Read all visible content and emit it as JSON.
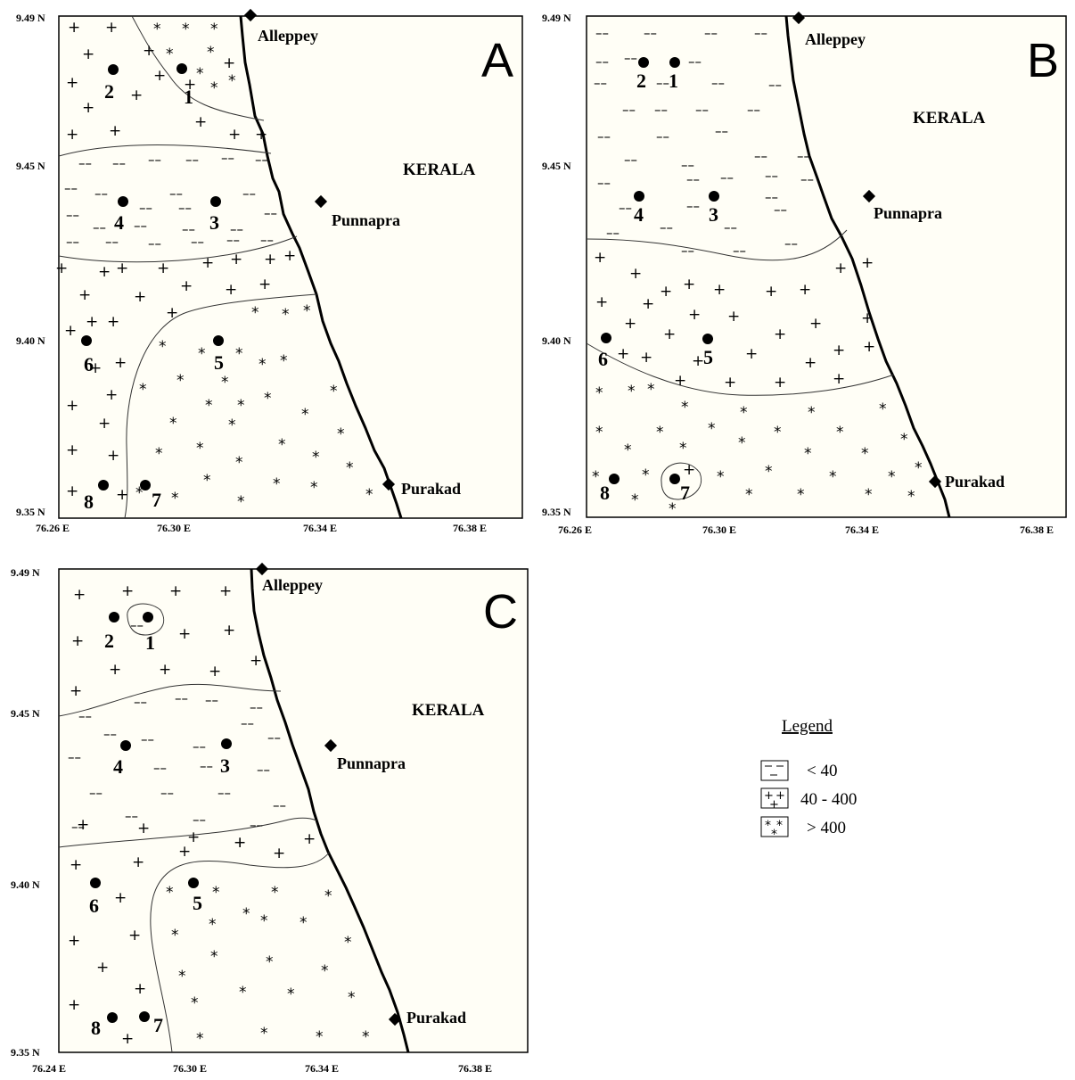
{
  "maps": [
    {
      "id": "A",
      "letter": "A",
      "state": "KERALA",
      "lat_labels": [
        "9.49",
        "9.45",
        "9.40",
        "9.35"
      ],
      "lat_unit": "N",
      "lon_labels": [
        "76.26",
        "76.30",
        "76.34",
        "76.38"
      ],
      "lon_unit": "E",
      "towns": [
        "Alleppey",
        "Punnapra",
        "Purakad"
      ],
      "stations": [
        "1",
        "2",
        "3",
        "4",
        "5",
        "6",
        "7",
        "8"
      ]
    },
    {
      "id": "B",
      "letter": "B",
      "state": "KERALA",
      "lat_labels": [
        "9.49",
        "9.45",
        "9.40",
        "9.35"
      ],
      "lat_unit": "N",
      "lon_labels": [
        "76.26",
        "76.30",
        "76.34",
        "76.38"
      ],
      "lon_unit": "E",
      "towns": [
        "Alleppey",
        "Punnapra",
        "Purakad"
      ],
      "stations": [
        "1",
        "2",
        "3",
        "4",
        "5",
        "6",
        "7",
        "8"
      ]
    },
    {
      "id": "C",
      "letter": "C",
      "state": "KERALA",
      "lat_labels": [
        "9.49",
        "9.45",
        "9.40",
        "9.35"
      ],
      "lat_unit": "N",
      "lon_labels": [
        "76.24",
        "76.30",
        "76.34",
        "76.38"
      ],
      "lon_unit": "E",
      "towns": [
        "Alleppey",
        "Punnapra",
        "Purakad"
      ],
      "stations": [
        "1",
        "2",
        "3",
        "4",
        "5",
        "6",
        "7",
        "8"
      ]
    }
  ],
  "legend": {
    "title": "Legend",
    "items": [
      {
        "symbol": "dash",
        "label": "< 40"
      },
      {
        "symbol": "plus",
        "label": "40 - 400"
      },
      {
        "symbol": "star",
        "label": "> 400"
      }
    ]
  }
}
